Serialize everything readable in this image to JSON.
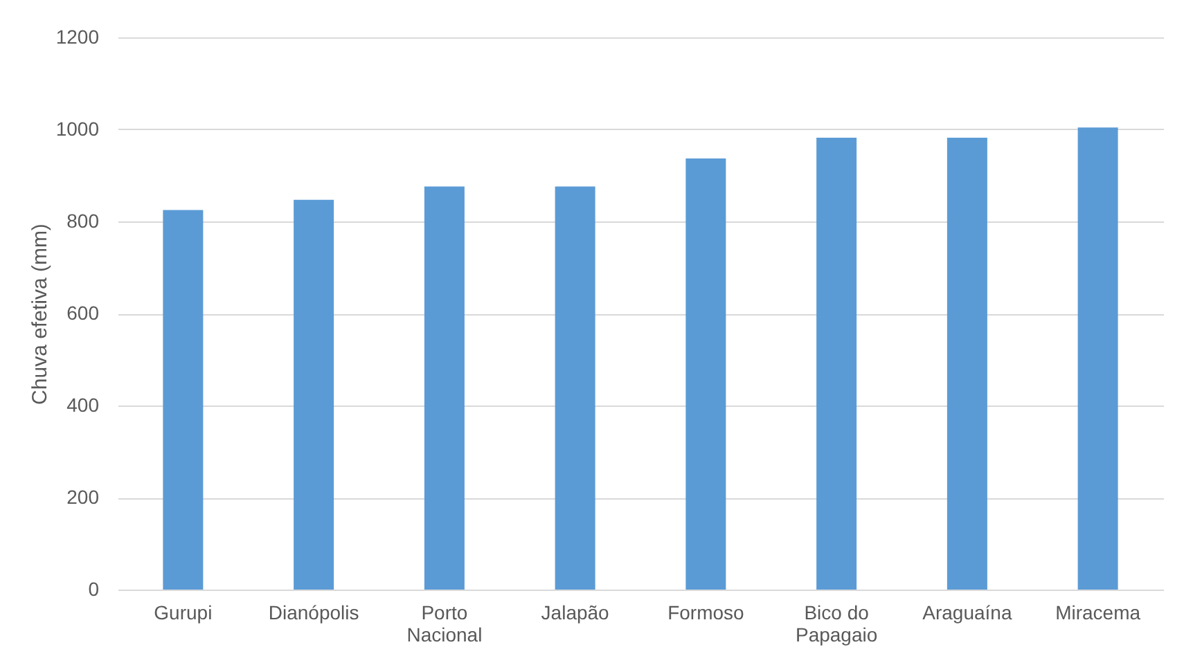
{
  "chart_data": {
    "type": "bar",
    "ylabel": "Chuva efetiva (mm)",
    "categories": [
      "Gurupi",
      "Dianópolis",
      "Porto Nacional",
      "Jalapão",
      "Formoso",
      "Bico do Papagaio",
      "Araguaína",
      "Miracema"
    ],
    "values": [
      825,
      847,
      876,
      876,
      937,
      982,
      982,
      1004
    ],
    "color": "#5b9bd5",
    "ylim": [
      0,
      1200
    ],
    "yticks": [
      0,
      200,
      400,
      600,
      800,
      1000,
      1200
    ],
    "grid": "y"
  }
}
